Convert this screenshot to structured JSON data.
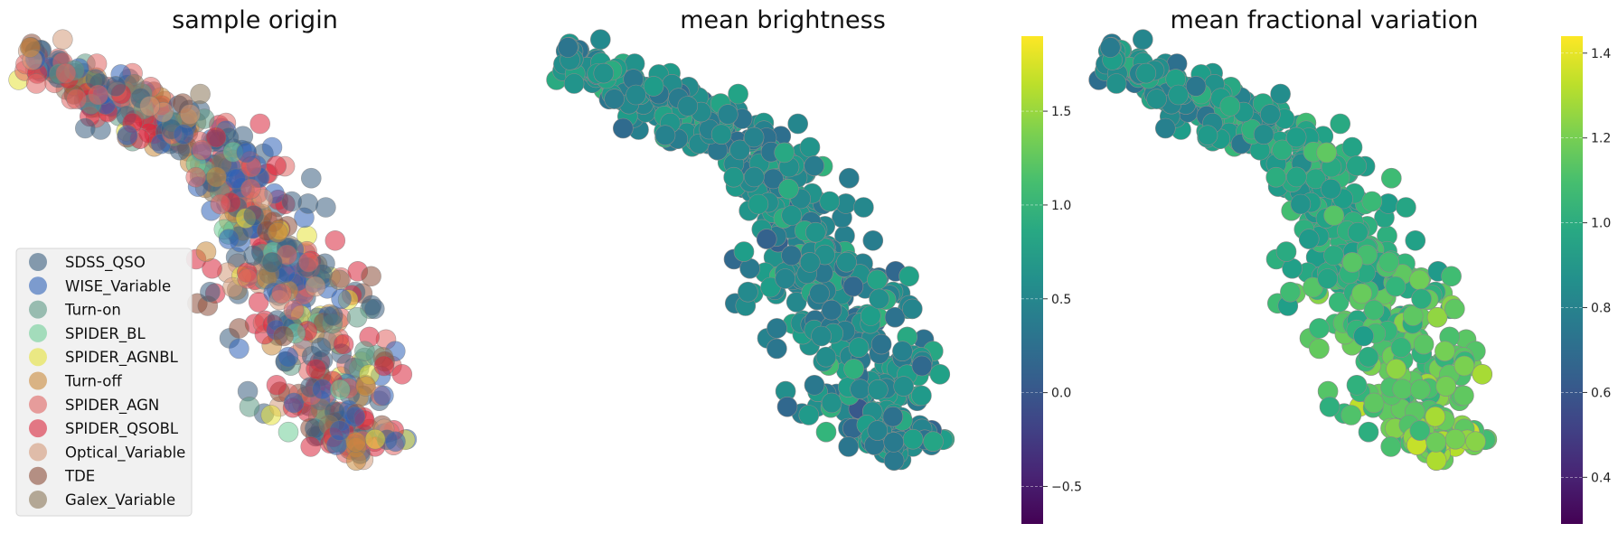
{
  "chart_data": [
    {
      "type": "scatter",
      "title": "sample origin",
      "legend": {
        "placement": "lower-left",
        "entries": [
          {
            "name": "SDSS_QSO",
            "color": "#3a5f7f"
          },
          {
            "name": "WISE_Variable",
            "color": "#2f62b8"
          },
          {
            "name": "Turn-on",
            "color": "#5e9a85"
          },
          {
            "name": "SPIDER_BL",
            "color": "#6fce98"
          },
          {
            "name": "SPIDER_AGNBL",
            "color": "#e6e23a"
          },
          {
            "name": "Turn-off",
            "color": "#c98a3c"
          },
          {
            "name": "SPIDER_AGN",
            "color": "#e06462"
          },
          {
            "name": "SPIDER_QSOBL",
            "color": "#d8273c"
          },
          {
            "name": "Optical_Variable",
            "color": "#d49a7a"
          },
          {
            "name": "TDE",
            "color": "#8c4f3a"
          },
          {
            "name": "Galex_Variable",
            "color": "#8a7759"
          }
        ]
      },
      "grid": false,
      "axes_visible": false
    },
    {
      "type": "scatter",
      "title": "mean brightness",
      "colormap": "viridis",
      "colorbar": {
        "range": [
          -0.7,
          1.9
        ],
        "ticks": [
          -0.5,
          0.0,
          0.5,
          1.0,
          1.5
        ],
        "tick_labels": [
          "−0.5",
          "0.0",
          "0.5",
          "1.0",
          "1.5"
        ]
      },
      "grid": false,
      "axes_visible": false
    },
    {
      "type": "scatter",
      "title": "mean fractional variation",
      "colormap": "viridis",
      "colorbar": {
        "range": [
          0.29,
          1.44
        ],
        "ticks": [
          0.4,
          0.6,
          0.8,
          1.0,
          1.2,
          1.4
        ],
        "tick_labels": [
          "0.4",
          "0.6",
          "0.8",
          "1.0",
          "1.2",
          "1.4"
        ]
      },
      "grid": false,
      "axes_visible": false
    }
  ]
}
